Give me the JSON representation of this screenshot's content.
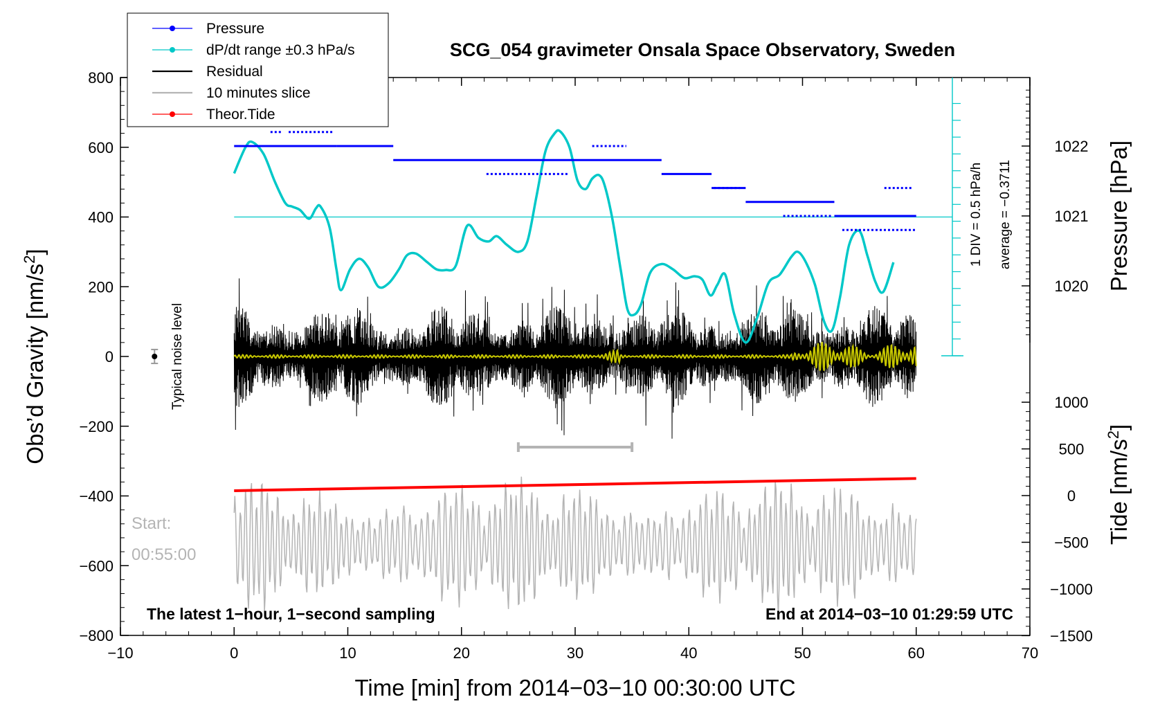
{
  "chart_data": {
    "type": "line",
    "title": "SCG_054 gravimeter Onsala Space Observatory, Sweden",
    "xlabel": "Time [min] from 2014−03−10 00:30:00 UTC",
    "ylabel_left": "Obs’d Gravity [nm/s²]",
    "ylabel_right_pressure": "Pressure [hPa]",
    "ylabel_right_tide": "Tide [nm/s²]",
    "xlim": [
      -10,
      70
    ],
    "ylim": [
      -800,
      800
    ],
    "x_ticks": [
      -10,
      0,
      10,
      20,
      30,
      40,
      50,
      60,
      70
    ],
    "x_tick_labels": [
      "−10",
      "0",
      "10",
      "20",
      "30",
      "40",
      "50",
      "60",
      "70"
    ],
    "y_ticks": [
      800,
      600,
      400,
      200,
      0,
      -200,
      -400,
      -600,
      -800
    ],
    "y_tick_labels": [
      "800",
      "600",
      "400",
      "200",
      "0",
      "−200",
      "−400",
      "−600",
      "−800"
    ],
    "pressure_ticks": [
      1022,
      1021,
      1020
    ],
    "pressure_tick_labels": [
      "1022",
      "1021",
      "1020"
    ],
    "tide_ticks": [
      1000,
      500,
      0,
      -500,
      -1000,
      -1500
    ],
    "tide_tick_labels": [
      "1000",
      "500",
      "0",
      "−500",
      "−1000",
      "−1500"
    ],
    "legend": [
      {
        "name": "Pressure",
        "color": "#0000ff",
        "marker": true
      },
      {
        "name": "dP/dt range ±0.3 hPa/s",
        "color": "#00c8c8",
        "marker": true
      },
      {
        "name": "Residual",
        "color": "#000000",
        "marker": false
      },
      {
        "name": "10 minutes slice",
        "color": "#b4b4b4",
        "marker": false
      },
      {
        "name": "Theor.Tide",
        "color": "#ff0000",
        "marker": true
      }
    ],
    "legend_position": "top-left",
    "noise_label": "Typical noise level",
    "noise_level": {
      "x": -7,
      "y": 0,
      "err": 20
    },
    "scale_note": "1 DIV = 0.5 hPa/h",
    "average_note": "average = −0.3711",
    "slice_bracket": [
      25,
      35
    ],
    "start_label": "Start:",
    "start_time": "00:55:00",
    "bottom_left_note": "The latest 1−hour, 1−second sampling",
    "bottom_right_note": "End at 2014−03−10 01:29:59 UTC",
    "series": [
      {
        "name": "Pressure",
        "unit": "hPa",
        "color": "#0000ff",
        "segments": [
          {
            "x0": 0,
            "x1": 9,
            "y": 1022.0
          },
          {
            "x0": 9,
            "x1": 14,
            "y": 1022.0
          },
          {
            "x0": 14,
            "x1": 37.6,
            "y": 1021.8
          },
          {
            "x0": 37.6,
            "x1": 42,
            "y": 1021.6
          },
          {
            "x0": 42,
            "x1": 45,
            "y": 1021.4
          },
          {
            "x0": 45,
            "x1": 52.8,
            "y": 1021.2
          },
          {
            "x0": 52.8,
            "x1": 60,
            "y": 1021.0
          }
        ],
        "upper_segments": [
          {
            "x0": 3.2,
            "x1": 4.2,
            "y": 1022.2
          },
          {
            "x0": 4.8,
            "x1": 8.8,
            "y": 1022.2
          },
          {
            "x0": 31.5,
            "x1": 34.5,
            "y": 1022.0
          },
          {
            "x0": 57.2,
            "x1": 59.6,
            "y": 1021.4
          }
        ],
        "lower_segments": [
          {
            "x0": 22.2,
            "x1": 29.5,
            "y": 1021.6
          },
          {
            "x0": 42.2,
            "x1": 44.5,
            "y": 1021.4
          },
          {
            "x0": 48.3,
            "x1": 52.6,
            "y": 1021.0
          },
          {
            "x0": 53.5,
            "x1": 60,
            "y": 1020.8
          }
        ]
      },
      {
        "name": "dP/dt range ±0.3 hPa/s",
        "color": "#00c8c8",
        "baseline": 400,
        "x": [
          0,
          1,
          1.6,
          2.6,
          3.6,
          4.5,
          5.1,
          5.8,
          6.6,
          7.2,
          7.6,
          8.4,
          9.0,
          9.4,
          10.2,
          11.0,
          11.8,
          12.7,
          13.6,
          14.5,
          15.2,
          16.0,
          17.0,
          17.8,
          18.6,
          19.5,
          20.5,
          21.5,
          22.4,
          23.1,
          24.0,
          25.0,
          25.8,
          26.6,
          27.4,
          28.2,
          28.7,
          29.5,
          30.2,
          30.9,
          31.5,
          32.1,
          32.6,
          33.3,
          34.0,
          34.6,
          35.2,
          35.8,
          36.6,
          37.6,
          38.6,
          39.6,
          40.5,
          41.2,
          41.9,
          42.5,
          43.2,
          44.0,
          45.0,
          46.0,
          47.0,
          48.0,
          49.0,
          49.6,
          50.3,
          51.1,
          51.9,
          52.6,
          53.3,
          54.1,
          55.0,
          55.7,
          56.4,
          57.1,
          58.0
        ],
        "y": [
          525,
          600,
          615,
          580,
          500,
          440,
          430,
          420,
          395,
          425,
          430,
          370,
          250,
          190,
          250,
          280,
          255,
          200,
          210,
          250,
          290,
          295,
          270,
          250,
          248,
          260,
          375,
          340,
          330,
          345,
          320,
          300,
          330,
          460,
          590,
          640,
          645,
          600,
          505,
          480,
          510,
          520,
          490,
          390,
          250,
          135,
          120,
          150,
          240,
          265,
          250,
          225,
          230,
          220,
          175,
          205,
          235,
          120,
          40,
          110,
          210,
          235,
          285,
          300,
          270,
          205,
          100,
          75,
          170,
          320,
          360,
          290,
          215,
          185,
          270
        ]
      },
      {
        "name": "Residual",
        "color": "#000000",
        "x_range": [
          0,
          60
        ],
        "typical_amplitude": 150,
        "max_amplitude": 300
      },
      {
        "name": "Residual (filtered)",
        "color": "#c8c800",
        "x_range": [
          0,
          60
        ],
        "typical_amplitude": 5,
        "max_amplitude": 45
      },
      {
        "name": "10 minutes slice",
        "color": "#b4b4b4",
        "source_x_range": [
          25,
          35
        ],
        "display_x_range": [
          0,
          60
        ],
        "center": -540,
        "typical_amplitude": 120,
        "max_amplitude": 230
      },
      {
        "name": "Theor.Tide",
        "unit": "nm/s²",
        "color": "#ff0000",
        "x": [
          0,
          60
        ],
        "y": [
          -385,
          -350
        ]
      }
    ]
  }
}
